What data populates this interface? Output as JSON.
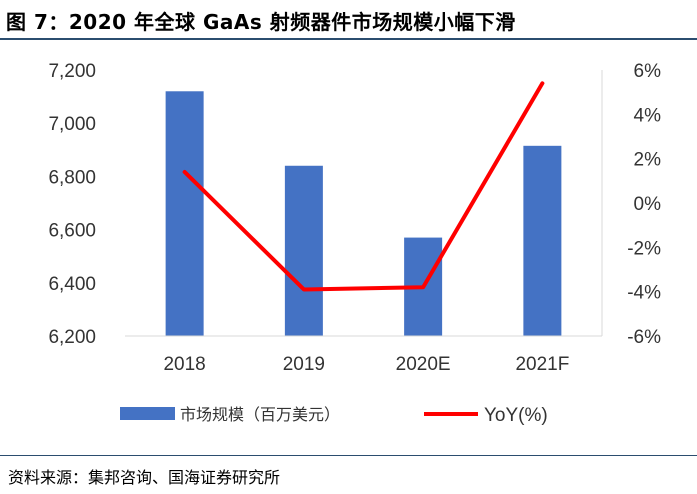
{
  "header": {
    "title": "图 7：2020 年全球 GaAs 射频器件市场规模小幅下滑"
  },
  "footer": {
    "source": "资料来源：集邦咨询、国海证券研究所"
  },
  "colors": {
    "bar": "#4472c4",
    "line": "#ff0000",
    "rule": "#2b4d6f"
  },
  "chart_data": {
    "type": "bar",
    "categories": [
      "2018",
      "2019",
      "2020E",
      "2021F"
    ],
    "series": [
      {
        "name": "市场规模（百万美元）",
        "type": "bar",
        "axis": "left",
        "values": [
          7120,
          6840,
          6570,
          6915
        ]
      },
      {
        "name": "YoY(%)",
        "type": "line",
        "axis": "right",
        "values": [
          1.4,
          -3.9,
          -3.8,
          5.4
        ]
      }
    ],
    "ylim": [
      6200,
      7200
    ],
    "y_ticks": [
      "6,200",
      "6,400",
      "6,600",
      "6,800",
      "7,000",
      "7,200"
    ],
    "y2lim": [
      -6,
      6
    ],
    "y2_ticks": [
      "-6%",
      "-4%",
      "-2%",
      "0%",
      "2%",
      "4%",
      "6%"
    ],
    "legend_position": "bottom",
    "grid": false
  }
}
